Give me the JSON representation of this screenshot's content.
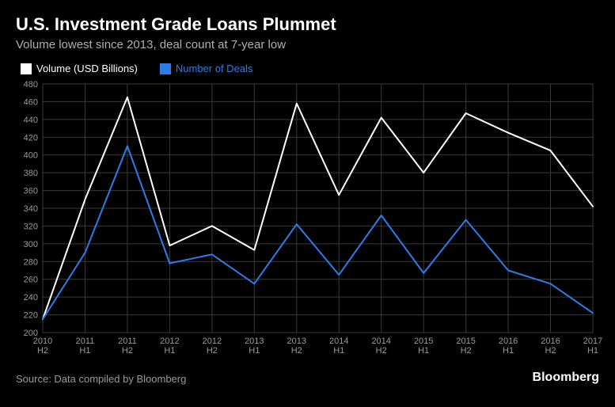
{
  "header": {
    "title": "U.S. Investment Grade Loans Plummet",
    "subtitle": "Volume lowest since 2013, deal count at 7-year low"
  },
  "legend": {
    "series1_label": "Volume (USD Billions)",
    "series2_label": "Number of Deals"
  },
  "chart": {
    "type": "line",
    "background_color": "#000000",
    "grid_color": "#3a3a3a",
    "axis_label_color": "#9a9a9a",
    "axis_label_fontsize": 11,
    "ylim": [
      200,
      480
    ],
    "ytick_step": 20,
    "yticks": [
      200,
      220,
      240,
      260,
      280,
      300,
      320,
      340,
      360,
      380,
      400,
      420,
      440,
      460,
      480
    ],
    "x_categories": [
      "2010 H2",
      "2011 H1",
      "2011 H2",
      "2012 H1",
      "2012 H2",
      "2013 H1",
      "2013 H2",
      "2014 H1",
      "2014 H2",
      "2015 H1",
      "2015 H2",
      "2016 H1",
      "2016 H2",
      "2017 H1"
    ],
    "x_labels_major": [
      "2010",
      "2011",
      "2011",
      "2012",
      "2012",
      "2013",
      "2013",
      "2014",
      "2014",
      "2015",
      "2015",
      "2016",
      "2016",
      "2017"
    ],
    "x_labels_minor": [
      "H2",
      "H1",
      "H2",
      "H1",
      "H2",
      "H1",
      "H2",
      "H1",
      "H2",
      "H1",
      "H2",
      "H1",
      "H2",
      "H1"
    ],
    "series": [
      {
        "name": "Volume (USD Billions)",
        "color": "#ffffff",
        "line_width": 2,
        "values": [
          215,
          350,
          465,
          298,
          320,
          293,
          458,
          355,
          442,
          380,
          447,
          425,
          405,
          342
        ]
      },
      {
        "name": "Number of Deals",
        "color": "#2b7de9",
        "line_width": 2,
        "values": [
          215,
          290,
          410,
          278,
          288,
          255,
          322,
          265,
          332,
          267,
          327,
          270,
          255,
          222
        ]
      }
    ]
  },
  "footer": {
    "source": "Source: Data compiled by Bloomberg",
    "brand": "Bloomberg"
  }
}
